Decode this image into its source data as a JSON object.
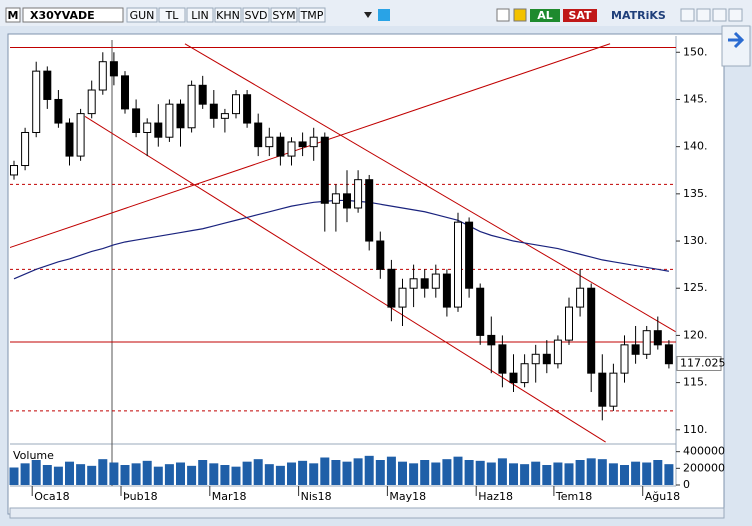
{
  "toolbar": {
    "logo": "M",
    "symbol": "X30YVADE",
    "buttons": [
      "GUN",
      "TL",
      "LIN",
      "KHN",
      "SVD",
      "SYM",
      "TMP"
    ],
    "buy": "AL",
    "sell": "SAT",
    "brand": "MATRiKS"
  },
  "chart_data": {
    "type": "candlestick",
    "categories": [
      null,
      null,
      "Oca18",
      null,
      null,
      null,
      null,
      null,
      null,
      null,
      "Þub18",
      null,
      null,
      null,
      null,
      null,
      null,
      null,
      "Mar18",
      null,
      null,
      null,
      null,
      null,
      null,
      null,
      "Nis18",
      null,
      null,
      null,
      null,
      null,
      null,
      null,
      "May18",
      null,
      null,
      null,
      null,
      null,
      null,
      null,
      "Haz18",
      null,
      null,
      null,
      null,
      null,
      null,
      "Tem18",
      null,
      null,
      null,
      null,
      null,
      null,
      null,
      "Ağu18",
      null,
      null
    ],
    "open": [
      137,
      138,
      141.5,
      148,
      145,
      142.5,
      139,
      143.5,
      146,
      149,
      147.5,
      144,
      141.5,
      142.5,
      141,
      144.5,
      142,
      146.5,
      144.5,
      143,
      143.5,
      145.5,
      142.5,
      140,
      141,
      139,
      140.5,
      140,
      141,
      134,
      135,
      133.5,
      136.5,
      130,
      127,
      123,
      125,
      126,
      125,
      126.5,
      123,
      132,
      125,
      120,
      119,
      116,
      115,
      117,
      118,
      117,
      119.5,
      123,
      125,
      116,
      112.5,
      116,
      119,
      118,
      120.5,
      119
    ],
    "high": [
      138.5,
      142,
      149,
      148.5,
      146,
      143,
      144,
      147,
      150,
      150,
      148,
      145,
      143,
      144.5,
      145,
      145,
      147,
      147.5,
      146,
      144,
      146,
      146,
      143.5,
      142,
      141.5,
      141,
      141.5,
      142,
      141.5,
      136,
      137.5,
      137.5,
      137,
      131,
      128,
      126,
      127.5,
      127,
      127.5,
      127,
      133,
      132.5,
      125.5,
      122,
      120,
      118,
      118,
      119,
      119.5,
      120,
      124,
      127,
      125.5,
      118,
      117,
      120,
      121,
      121,
      122,
      119.5
    ],
    "low": [
      136.5,
      137.5,
      141,
      144,
      142,
      138,
      138.5,
      143,
      145.5,
      146.5,
      143.5,
      141,
      139,
      140,
      140.5,
      140,
      141.5,
      144,
      142,
      141.5,
      143,
      142,
      139,
      139,
      138,
      138,
      139,
      138.5,
      131,
      131,
      132,
      133,
      129,
      126,
      121.5,
      121,
      123,
      124,
      124,
      122,
      122.5,
      124,
      119,
      116,
      114.5,
      114,
      114.5,
      115,
      116,
      116.5,
      119,
      122,
      114,
      111,
      112,
      115,
      117,
      117.5,
      118.5,
      116.5
    ],
    "close": [
      138,
      141.5,
      148,
      145,
      142.5,
      139,
      143.5,
      146,
      149,
      147.5,
      144,
      141.5,
      142.5,
      141,
      144.5,
      142,
      146.5,
      144.5,
      143,
      143.5,
      145.5,
      142.5,
      140,
      141,
      139,
      140.5,
      140,
      141,
      134,
      135,
      133.5,
      136.5,
      130,
      127,
      123,
      125,
      126,
      125,
      126.5,
      123,
      132,
      125,
      120,
      119,
      116,
      115,
      117,
      118,
      117,
      119.5,
      123,
      125,
      116,
      112.5,
      116,
      119,
      118,
      120.5,
      119,
      117
    ],
    "ylim": [
      108.6,
      151.3
    ],
    "yticks": [
      {
        "value": 110,
        "label": "110."
      },
      {
        "value": 115,
        "label": "115."
      },
      {
        "value": 120,
        "label": "120."
      },
      {
        "value": 125,
        "label": "125."
      },
      {
        "value": 130,
        "label": "130."
      },
      {
        "value": 135,
        "label": "135."
      },
      {
        "value": 140,
        "label": "140."
      },
      {
        "value": 145,
        "label": "145."
      },
      {
        "value": 150,
        "label": "150."
      }
    ],
    "last_value": 117.025,
    "ma": {
      "color": "#1a237e",
      "values": [
        126,
        126.5,
        127,
        127.4,
        127.8,
        128.1,
        128.5,
        128.9,
        129.2,
        129.6,
        129.9,
        130.1,
        130.3,
        130.5,
        130.7,
        130.9,
        131.1,
        131.3,
        131.6,
        131.9,
        132.2,
        132.5,
        132.8,
        133.1,
        133.4,
        133.7,
        133.9,
        134.1,
        134.2,
        134.3,
        134.3,
        134.2,
        134.1,
        133.9,
        133.7,
        133.5,
        133.3,
        133.1,
        132.8,
        132.5,
        132.2,
        131.6,
        131,
        130.6,
        130.3,
        130,
        129.8,
        129.6,
        129.4,
        129.2,
        128.9,
        128.6,
        128.3,
        128,
        127.8,
        127.6,
        127.4,
        127.2,
        127,
        126.8
      ]
    },
    "hlines": [
      {
        "value": 150.5,
        "color": "#c00000",
        "dashed": false
      },
      {
        "value": 136,
        "color": "#c00000",
        "dashed": true
      },
      {
        "value": 127,
        "color": "#c00000",
        "dashed": true
      },
      {
        "value": 119.3,
        "color": "#c00000",
        "dashed": false
      },
      {
        "value": 112,
        "color": "#c00000",
        "dashed": true
      }
    ],
    "trendlines": [
      {
        "x": [
          15.4,
          59.6
        ],
        "y": [
          150.9,
          120.4
        ],
        "color": "#c00000"
      },
      {
        "x": [
          6.4,
          53.3
        ],
        "y": [
          143.2,
          108.7
        ],
        "color": "#c00000"
      },
      {
        "x": [
          -0.4,
          53.7
        ],
        "y": [
          129.3,
          150.9
        ],
        "color": "#c00000"
      }
    ],
    "up_color": "#ffffff",
    "down_color": "#000000",
    "volume": {
      "title": "Volume",
      "color": "#1f5fa8",
      "ylim": [
        0,
        420000
      ],
      "yticks": [
        0,
        200000,
        400000
      ],
      "values": [
        210000,
        260000,
        300000,
        240000,
        220000,
        280000,
        250000,
        230000,
        310000,
        270000,
        240000,
        260000,
        290000,
        220000,
        250000,
        270000,
        230000,
        300000,
        260000,
        240000,
        220000,
        280000,
        310000,
        250000,
        230000,
        270000,
        290000,
        260000,
        330000,
        300000,
        280000,
        320000,
        350000,
        300000,
        340000,
        280000,
        260000,
        300000,
        270000,
        310000,
        340000,
        300000,
        290000,
        270000,
        320000,
        260000,
        250000,
        280000,
        240000,
        270000,
        260000,
        300000,
        320000,
        310000,
        260000,
        240000,
        280000,
        270000,
        300000,
        250000
      ]
    }
  }
}
